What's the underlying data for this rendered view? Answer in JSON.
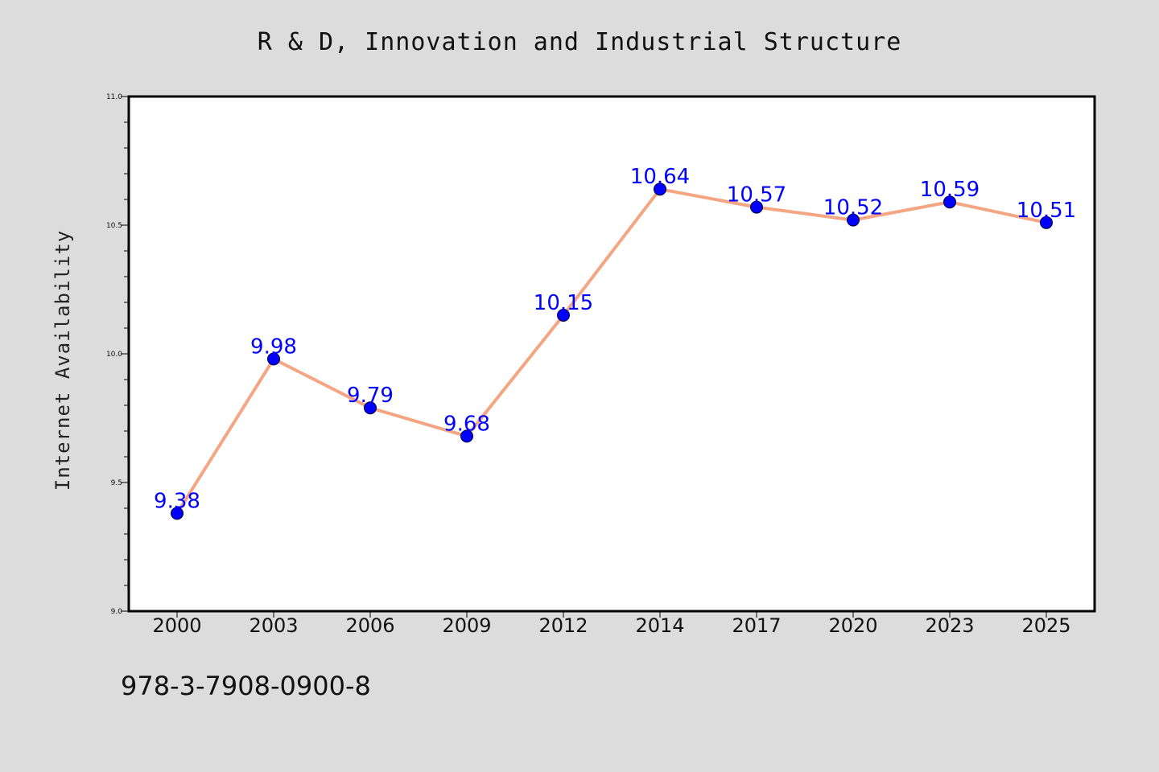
{
  "chart_data": {
    "type": "line",
    "title": "R & D, Innovation and Industrial Structure",
    "xlabel": "",
    "ylabel": "Internet Availability",
    "categories": [
      "2000",
      "2003",
      "2006",
      "2009",
      "2012",
      "2014",
      "2017",
      "2020",
      "2023",
      "2025"
    ],
    "series": [
      {
        "values": [
          9.38,
          9.98,
          9.79,
          9.68,
          10.15,
          10.64,
          10.57,
          10.52,
          10.59,
          10.51
        ],
        "data_labels": [
          "9.38",
          "9.98",
          "9.79",
          "9.68",
          "10.15",
          "10.64",
          "10.57",
          "10.52",
          "10.59",
          "10.51"
        ]
      }
    ],
    "ylim": [
      9.0,
      11.0
    ],
    "yticks": [
      "9.0",
      "9.5",
      "10.0",
      "10.5",
      "11.0"
    ],
    "ytick_values": [
      9.0,
      9.5,
      10.0,
      10.5,
      11.0
    ],
    "grid": false,
    "line_color": "#f4a582",
    "marker_color": "#0000ff",
    "label_color": "#0000ff"
  },
  "footer": {
    "isbn": "978-3-7908-0900-8"
  },
  "colors": {
    "background": "#dcdcdc",
    "plot_background": "#ffffff"
  }
}
